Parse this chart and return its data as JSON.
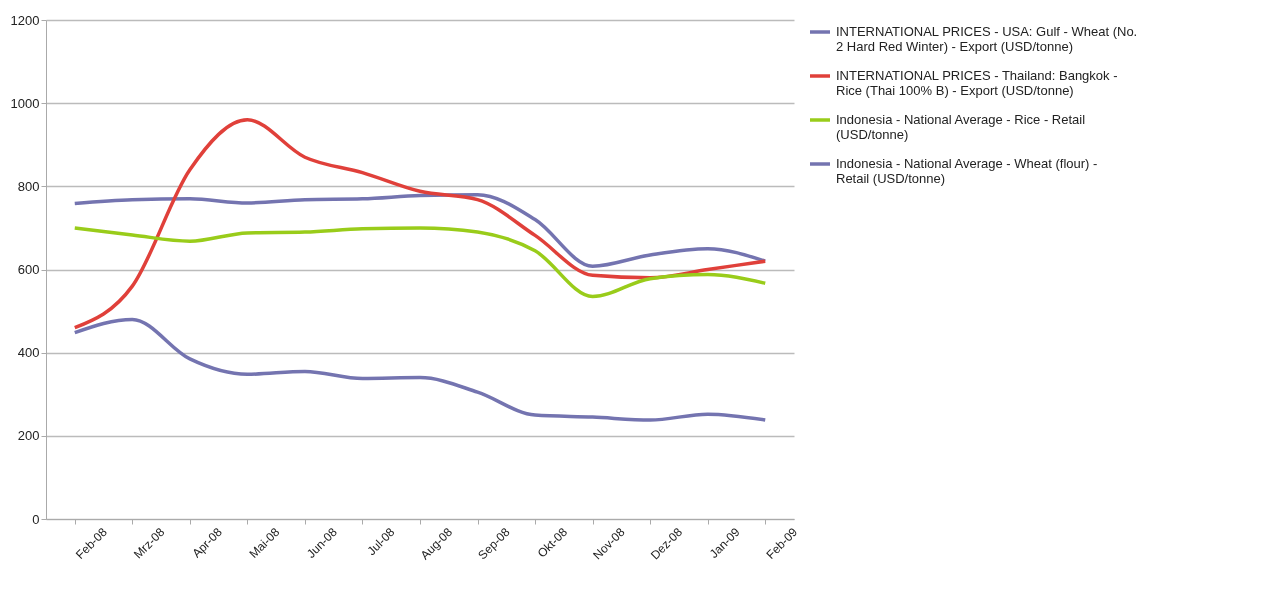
{
  "chart_data": {
    "type": "line",
    "categories": [
      "Feb-08",
      "Mrz-08",
      "Apr-08",
      "Mai-08",
      "Jun-08",
      "Jul-08",
      "Aug-08",
      "Sep-08",
      "Okt-08",
      "Nov-08",
      "Dez-08",
      "Jan-09",
      "Feb-09"
    ],
    "series": [
      {
        "name": "INTERNATIONAL PRICES - USA: Gulf - Wheat (No. 2 Hard Red Winter) - Export (USD/tonne)",
        "color": "#7474b0",
        "values": [
          759,
          768,
          770,
          760,
          768,
          770,
          778,
          780,
          720,
          608,
          635,
          650,
          620
        ]
      },
      {
        "name": "INTERNATIONAL PRICES - Thailand: Bangkok - Rice (Thai 100% B) - Export (USD/tonne)",
        "color": "#e0403a",
        "values": [
          460,
          560,
          840,
          960,
          870,
          833,
          788,
          768,
          682,
          586,
          580,
          600,
          620
        ]
      },
      {
        "name": "Indonesia - National Average - Rice - Retail (USD/tonne)",
        "color": "#99cc1a",
        "values": [
          700,
          683,
          668,
          688,
          690,
          698,
          700,
          690,
          645,
          535,
          578,
          588,
          567
        ]
      },
      {
        "name": "Indonesia - National Average - Wheat (flour) - Retail (USD/tonne)",
        "color": "#7474b0",
        "values": [
          448,
          480,
          385,
          348,
          355,
          338,
          340,
          305,
          250,
          245,
          238,
          252,
          238
        ]
      }
    ],
    "ylim": [
      0,
      1200
    ],
    "yticks": [
      0,
      200,
      400,
      600,
      800,
      1000,
      1200
    ],
    "grid": "y",
    "legend": "right",
    "marker": "none",
    "line_style": "solid"
  }
}
